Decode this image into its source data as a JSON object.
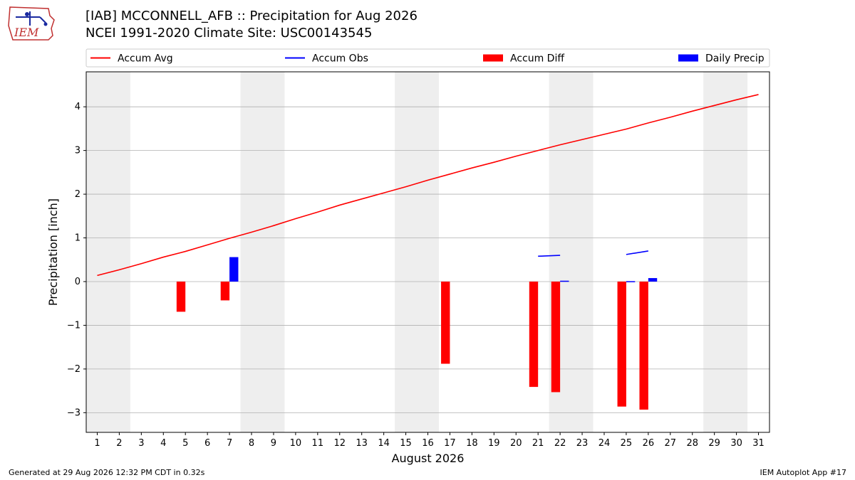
{
  "header": {
    "title_line1": "[IAB] MCCONNELL_AFB :: Precipitation for Aug 2026",
    "title_line2": "NCEI 1991-2020 Climate Site: USC00143545"
  },
  "logo": {
    "text": "IEM"
  },
  "footer": {
    "left": "Generated at 29 Aug 2026 12:32 PM CDT in 0.32s",
    "right": "IEM Autoplot App #17"
  },
  "colors": {
    "accum_avg": "#ff0000",
    "accum_obs": "#0000ff",
    "accum_diff": "#ff0000",
    "daily_precip": "#0000ff",
    "weekend_shade": "#eeeeee",
    "grid": "#b0b0b0"
  },
  "chart_data": {
    "type": "bar",
    "xlabel": "August 2026",
    "ylabel": "Precipitation [inch]",
    "xlim": [
      0.5,
      31.5
    ],
    "ylim": [
      -3.45,
      4.8
    ],
    "yticks": [
      -3,
      -2,
      -1,
      0,
      1,
      2,
      3,
      4
    ],
    "ytick_labels": [
      "−3",
      "−2",
      "−1",
      "0",
      "1",
      "2",
      "3",
      "4"
    ],
    "xticks": [
      1,
      2,
      3,
      4,
      5,
      6,
      7,
      8,
      9,
      10,
      11,
      12,
      13,
      14,
      15,
      16,
      17,
      18,
      19,
      20,
      21,
      22,
      23,
      24,
      25,
      26,
      27,
      28,
      29,
      30,
      31
    ],
    "grid": "horizontal",
    "legend": {
      "placement": "top",
      "entries": [
        "Accum Avg",
        "Accum Obs",
        "Accum Diff",
        "Daily Precip"
      ]
    },
    "weekend_shading": [
      [
        1,
        2
      ],
      [
        8,
        9
      ],
      [
        15,
        16
      ],
      [
        22,
        23
      ],
      [
        29,
        30
      ]
    ],
    "series": [
      {
        "name": "Accum Avg",
        "kind": "line",
        "x": [
          1,
          2,
          3,
          4,
          5,
          6,
          7,
          8,
          9,
          10,
          11,
          12,
          13,
          14,
          15,
          16,
          17,
          18,
          19,
          20,
          21,
          22,
          23,
          24,
          25,
          26,
          27,
          28,
          29,
          30,
          31
        ],
        "values": [
          0.14,
          0.27,
          0.41,
          0.56,
          0.69,
          0.84,
          0.99,
          1.13,
          1.28,
          1.44,
          1.59,
          1.75,
          1.89,
          2.03,
          2.17,
          2.32,
          2.46,
          2.6,
          2.73,
          2.87,
          3.0,
          3.13,
          3.25,
          3.37,
          3.49,
          3.63,
          3.76,
          3.9,
          4.03,
          4.16,
          4.28
        ]
      },
      {
        "name": "Accum Obs",
        "kind": "line",
        "segments": [
          {
            "x": [
              21,
              22
            ],
            "values": [
              0.58,
              0.6
            ]
          },
          {
            "x": [
              25,
              26
            ],
            "values": [
              0.62,
              0.7
            ]
          }
        ]
      },
      {
        "name": "Accum Diff",
        "kind": "bar",
        "x": [
          5,
          7,
          17,
          21,
          22,
          25,
          26
        ],
        "values": [
          -0.69,
          -0.43,
          -1.88,
          -2.41,
          -2.53,
          -2.86,
          -2.93
        ]
      },
      {
        "name": "Daily Precip",
        "kind": "bar",
        "x": [
          7,
          22,
          25,
          26
        ],
        "values": [
          0.56,
          0.02,
          0.01,
          0.08
        ]
      }
    ]
  }
}
